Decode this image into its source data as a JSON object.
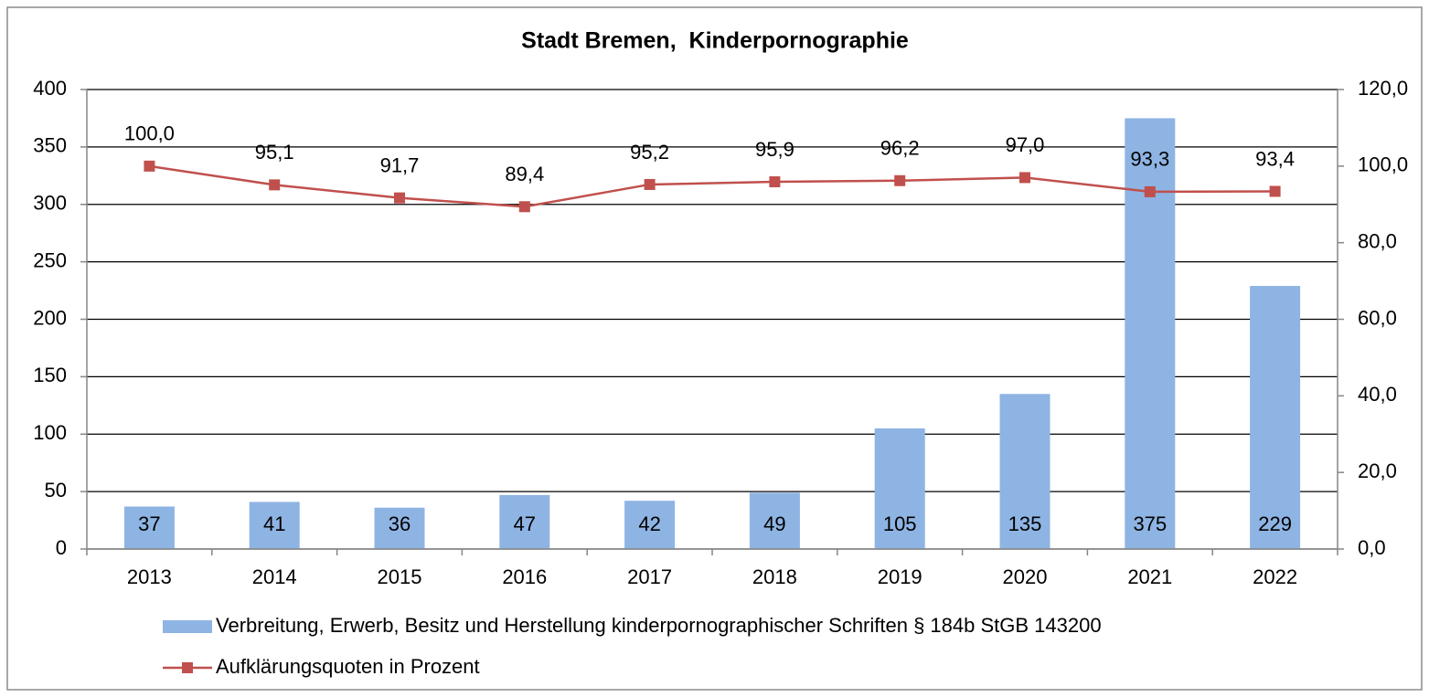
{
  "chart_data": {
    "type": "bar",
    "title": "Stadt Bremen,  Kinderpornographie",
    "categories": [
      "2013",
      "2014",
      "2015",
      "2016",
      "2017",
      "2018",
      "2019",
      "2020",
      "2021",
      "2022"
    ],
    "series": [
      {
        "name": "Verbreitung, Erwerb, Besitz und Herstellung kinderpornographischer Schriften § 184b StGB 143200",
        "type": "bar",
        "color": "#8eb4e3",
        "values": [
          37,
          41,
          36,
          47,
          42,
          49,
          105,
          135,
          375,
          229
        ]
      },
      {
        "name": "Aufklärungsquoten in Prozent",
        "type": "line",
        "axis": "y2",
        "color": "#c0504d",
        "values": [
          100.0,
          95.1,
          91.7,
          89.4,
          95.2,
          95.9,
          96.2,
          97.0,
          93.3,
          93.4
        ],
        "value_labels": [
          "100,0",
          "95,1",
          "91,7",
          "89,4",
          "95,2",
          "95,9",
          "96,2",
          "97,0",
          "93,3",
          "93,4"
        ]
      }
    ],
    "ylim": [
      0,
      400
    ],
    "yticks": [
      0,
      50,
      100,
      150,
      200,
      250,
      300,
      350,
      400
    ],
    "y2lim": [
      0,
      120
    ],
    "y2ticks": [
      {
        "value": 0,
        "label": "0,0"
      },
      {
        "value": 20,
        "label": "20,0"
      },
      {
        "value": 40,
        "label": "40,0"
      },
      {
        "value": 60,
        "label": "60,0"
      },
      {
        "value": 80,
        "label": "80,0"
      },
      {
        "value": 100,
        "label": "100,0"
      },
      {
        "value": 120,
        "label": "120,0"
      }
    ],
    "grid": true,
    "legend": "bottom"
  }
}
